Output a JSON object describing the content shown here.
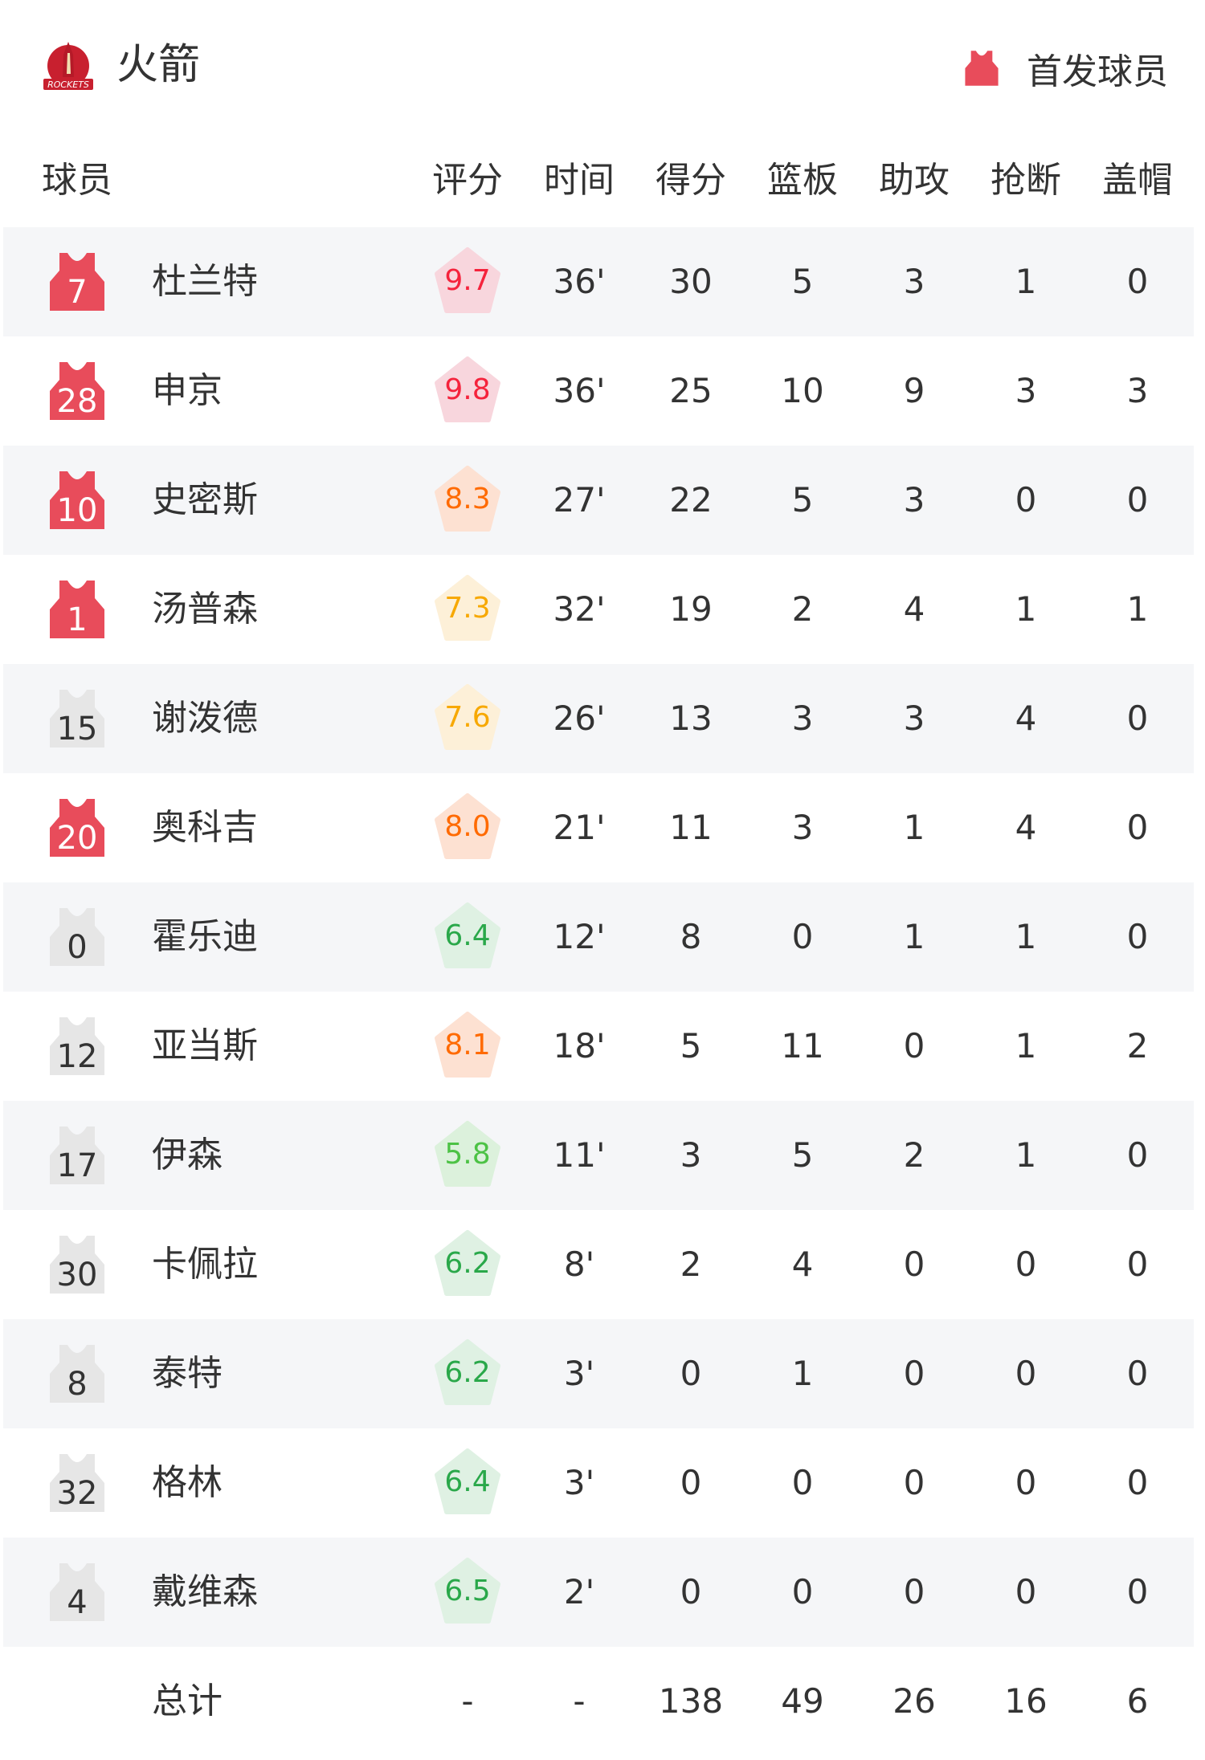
{
  "header": {
    "team_name": "火箭",
    "logo_text": "ROCKETS",
    "legend_label": "首发球员",
    "logo_icon": "rockets-logo",
    "legend_icon": "jersey-icon"
  },
  "colors": {
    "starter_jersey": "#e84c5b",
    "bench_jersey": "#e6e6e6",
    "row_alt_bg": "#f5f6f8",
    "text": "#333333",
    "rating_red": {
      "text": "#f5233c",
      "bg": "#f8d6dd"
    },
    "rating_orange": {
      "text": "#ff6a00",
      "bg": "#fde1d2"
    },
    "rating_yellow": {
      "text": "#f7a800",
      "bg": "#fdf0d8"
    },
    "rating_green": {
      "text": "#2aa84a",
      "bg": "#dff1e3"
    },
    "rating_lightgreen": {
      "text": "#4cc245",
      "bg": "#dcf1dc"
    }
  },
  "columns": [
    "球员",
    "评分",
    "时间",
    "得分",
    "篮板",
    "助攻",
    "抢断",
    "盖帽"
  ],
  "players": [
    {
      "number": "7",
      "name": "杜兰特",
      "starter": true,
      "rating": "9.7",
      "rating_tier": "rating_red",
      "time": "36'",
      "pts": "30",
      "reb": "5",
      "ast": "3",
      "stl": "1",
      "blk": "0"
    },
    {
      "number": "28",
      "name": "申京",
      "starter": true,
      "rating": "9.8",
      "rating_tier": "rating_red",
      "time": "36'",
      "pts": "25",
      "reb": "10",
      "ast": "9",
      "stl": "3",
      "blk": "3"
    },
    {
      "number": "10",
      "name": "史密斯",
      "starter": true,
      "rating": "8.3",
      "rating_tier": "rating_orange",
      "time": "27'",
      "pts": "22",
      "reb": "5",
      "ast": "3",
      "stl": "0",
      "blk": "0"
    },
    {
      "number": "1",
      "name": "汤普森",
      "starter": true,
      "rating": "7.3",
      "rating_tier": "rating_yellow",
      "time": "32'",
      "pts": "19",
      "reb": "2",
      "ast": "4",
      "stl": "1",
      "blk": "1"
    },
    {
      "number": "15",
      "name": "谢泼德",
      "starter": false,
      "rating": "7.6",
      "rating_tier": "rating_yellow",
      "time": "26'",
      "pts": "13",
      "reb": "3",
      "ast": "3",
      "stl": "4",
      "blk": "0"
    },
    {
      "number": "20",
      "name": "奥科吉",
      "starter": true,
      "rating": "8.0",
      "rating_tier": "rating_orange",
      "time": "21'",
      "pts": "11",
      "reb": "3",
      "ast": "1",
      "stl": "4",
      "blk": "0"
    },
    {
      "number": "0",
      "name": "霍乐迪",
      "starter": false,
      "rating": "6.4",
      "rating_tier": "rating_green",
      "time": "12'",
      "pts": "8",
      "reb": "0",
      "ast": "1",
      "stl": "1",
      "blk": "0"
    },
    {
      "number": "12",
      "name": "亚当斯",
      "starter": false,
      "rating": "8.1",
      "rating_tier": "rating_orange",
      "time": "18'",
      "pts": "5",
      "reb": "11",
      "ast": "0",
      "stl": "1",
      "blk": "2"
    },
    {
      "number": "17",
      "name": "伊森",
      "starter": false,
      "rating": "5.8",
      "rating_tier": "rating_lightgreen",
      "time": "11'",
      "pts": "3",
      "reb": "5",
      "ast": "2",
      "stl": "1",
      "blk": "0"
    },
    {
      "number": "30",
      "name": "卡佩拉",
      "starter": false,
      "rating": "6.2",
      "rating_tier": "rating_green",
      "time": "8'",
      "pts": "2",
      "reb": "4",
      "ast": "0",
      "stl": "0",
      "blk": "0"
    },
    {
      "number": "8",
      "name": "泰特",
      "starter": false,
      "rating": "6.2",
      "rating_tier": "rating_green",
      "time": "3'",
      "pts": "0",
      "reb": "1",
      "ast": "0",
      "stl": "0",
      "blk": "0"
    },
    {
      "number": "32",
      "name": "格林",
      "starter": false,
      "rating": "6.4",
      "rating_tier": "rating_green",
      "time": "3'",
      "pts": "0",
      "reb": "0",
      "ast": "0",
      "stl": "0",
      "blk": "0"
    },
    {
      "number": "4",
      "name": "戴维森",
      "starter": false,
      "rating": "6.5",
      "rating_tier": "rating_green",
      "time": "2'",
      "pts": "0",
      "reb": "0",
      "ast": "0",
      "stl": "0",
      "blk": "0"
    }
  ],
  "totals": {
    "label": "总计",
    "rating": "-",
    "time": "-",
    "pts": "138",
    "reb": "49",
    "ast": "26",
    "stl": "16",
    "blk": "6"
  }
}
